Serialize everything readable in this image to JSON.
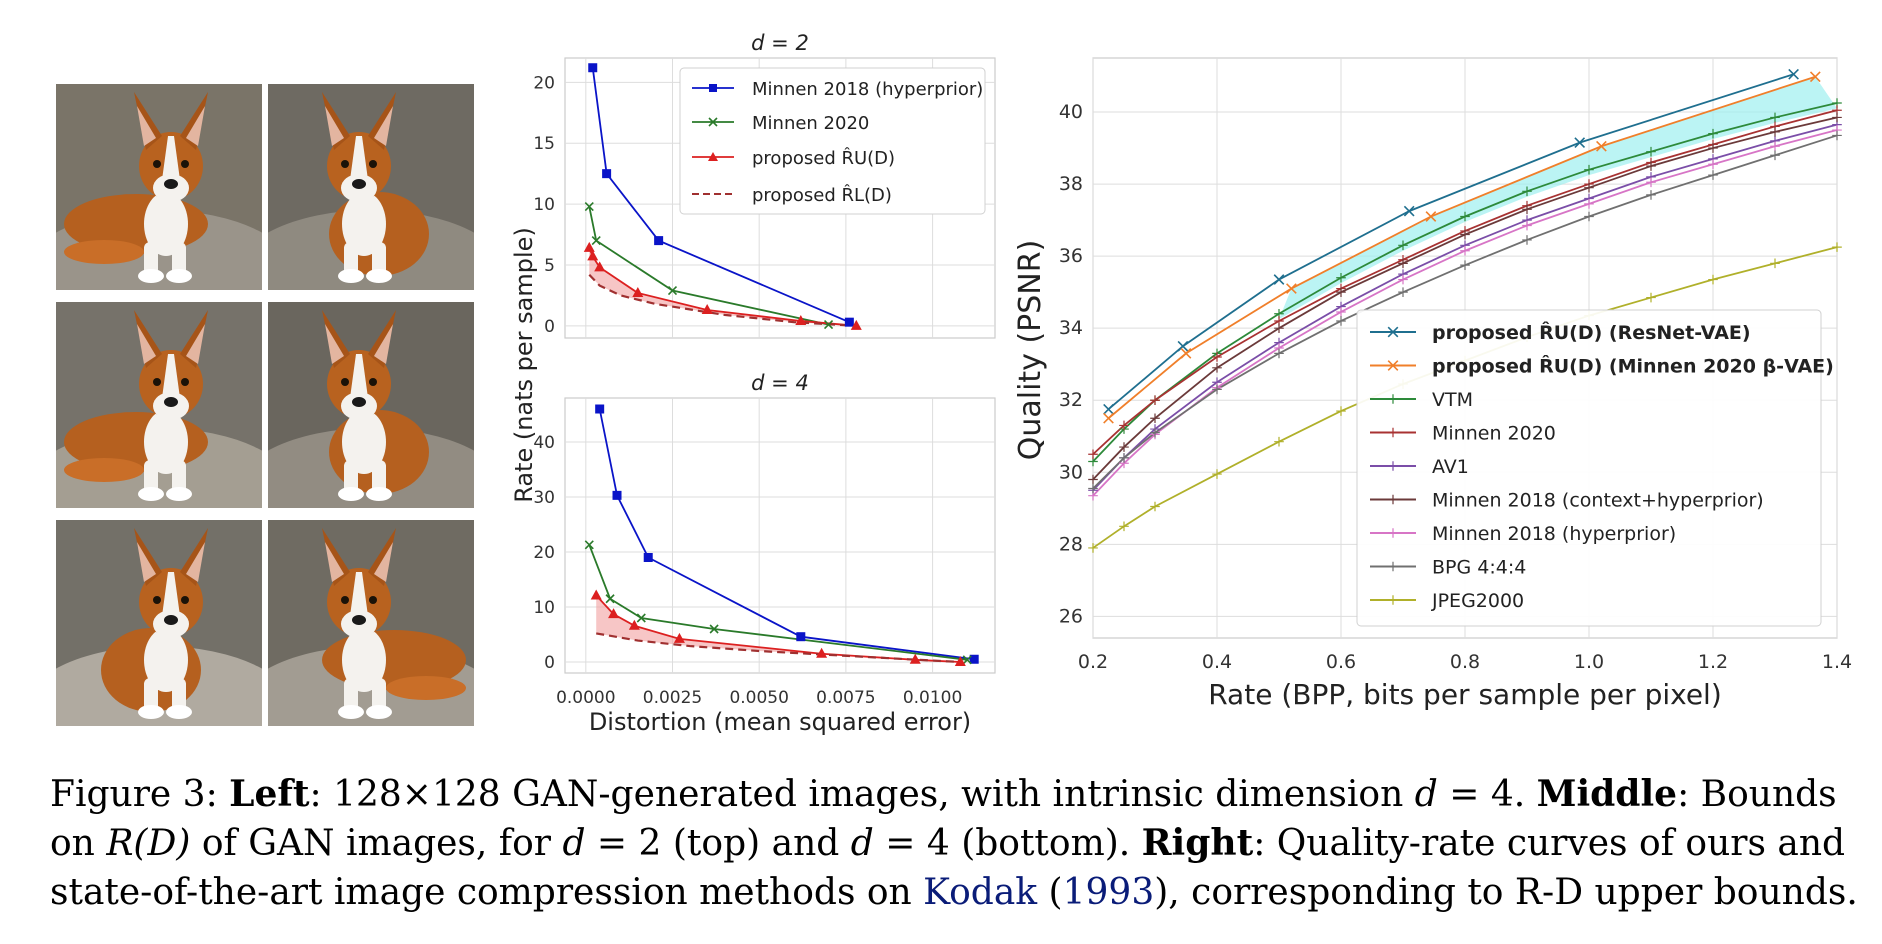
{
  "caption": {
    "figure_label": "Figure 3:",
    "left_head": "Left",
    "left_text_a": ": 128×128 GAN-generated images, with intrinsic dimension ",
    "d_sym": "d",
    "eq4": " = 4. ",
    "middle_head": "Middle",
    "middle_text_a": ": Bounds",
    "line2_a": "on ",
    "RD": "R(D)",
    "line2_b": " of GAN images, for ",
    "eq2_top": " = 2 (top) and ",
    "eq4_bottom": " = 4 (bottom). ",
    "right_head": "Right",
    "right_text_a": ": Quality-rate curves of ours and",
    "line3_a": "state-of-the-art image compression methods on ",
    "kodak": "Kodak",
    "line3_b": " (",
    "year": "1993",
    "line3_c": "), corresponding to R-D upper bounds."
  },
  "colors": {
    "blue": "#0a14c8",
    "green": "#2a7a2a",
    "red": "#dc2020",
    "darkred": "#a03030",
    "gray_bg_grid": "#d9d9d9",
    "teal": "#1f6f8f",
    "orange": "#f07f2a",
    "vtm": "#2d8a3a",
    "minnen2020": "#a83232",
    "av1": "#7b4ea8",
    "context": "#6b3a3a",
    "hyper": "#d775c6",
    "bpg": "#707070",
    "jpeg2000": "#b0b02a",
    "cyan_fill": "#9ef0f0"
  },
  "chart_data": [
    {
      "type": "line",
      "title": "d = 2",
      "ylabel": "Rate (nats per sample)",
      "xlim": [
        -0.0006,
        0.0118
      ],
      "ylim": [
        -1,
        22
      ],
      "yticks": [
        "0",
        "5",
        "10",
        "15",
        "20"
      ],
      "ytick_values": [
        0,
        5,
        10,
        15,
        20
      ],
      "grid": true,
      "legend_position": "top-right",
      "series": [
        {
          "name": "Minnen 2018 (hyperprior)",
          "color": "#0a14c8",
          "marker": "square",
          "x": [
            0.0002,
            0.0006,
            0.0021,
            0.0076
          ],
          "y": [
            21.2,
            12.5,
            7.0,
            0.3
          ]
        },
        {
          "name": "Minnen 2020",
          "color": "#2a7a2a",
          "marker": "x",
          "x": [
            0.0001,
            0.0003,
            0.0025,
            0.007
          ],
          "y": [
            9.8,
            7.0,
            2.9,
            0.1
          ]
        },
        {
          "name": "proposed R̂U(D)",
          "color": "#dc2020",
          "marker": "triangle",
          "x": [
            0.0001,
            0.0002,
            0.0004,
            0.0015,
            0.0035,
            0.0062,
            0.0078
          ],
          "y": [
            6.4,
            5.7,
            4.8,
            2.7,
            1.3,
            0.4,
            0.0
          ]
        },
        {
          "name": "proposed R̂L(D)",
          "color": "#a03030",
          "marker": "none",
          "dash": true,
          "x": [
            0.0001,
            0.0004,
            0.001,
            0.002,
            0.004,
            0.006,
            0.0078
          ],
          "y": [
            4.2,
            3.3,
            2.5,
            1.8,
            0.9,
            0.3,
            0.0
          ]
        }
      ]
    },
    {
      "type": "line",
      "title": "d = 4",
      "ylabel": "Rate (nats per sample)",
      "xlabel": "Distortion (mean squared error)",
      "xlim": [
        -0.0006,
        0.0118
      ],
      "ylim": [
        -2,
        48
      ],
      "xticks": [
        "0.0000",
        "0.0025",
        "0.0050",
        "0.0075",
        "0.0100"
      ],
      "xtick_values": [
        0.0,
        0.0025,
        0.005,
        0.0075,
        0.01
      ],
      "yticks": [
        "0",
        "10",
        "20",
        "30",
        "40"
      ],
      "ytick_values": [
        0,
        10,
        20,
        30,
        40
      ],
      "grid": true,
      "series": [
        {
          "name": "Minnen 2018 (hyperprior)",
          "color": "#0a14c8",
          "marker": "square",
          "x": [
            0.0004,
            0.0009,
            0.0018,
            0.0062,
            0.0112
          ],
          "y": [
            46,
            30.3,
            19,
            4.6,
            0.5
          ]
        },
        {
          "name": "Minnen 2020",
          "color": "#2a7a2a",
          "marker": "x",
          "x": [
            0.0001,
            0.0007,
            0.0016,
            0.0037,
            0.011
          ],
          "y": [
            21.3,
            11.5,
            8.0,
            6.0,
            0.4
          ]
        },
        {
          "name": "proposed R̂U(D)",
          "color": "#dc2020",
          "marker": "triangle",
          "x": [
            0.0003,
            0.0008,
            0.0014,
            0.0027,
            0.0068,
            0.0095,
            0.0108
          ],
          "y": [
            12.1,
            8.7,
            6.6,
            4.2,
            1.5,
            0.4,
            0.0
          ]
        },
        {
          "name": "proposed R̂L(D)",
          "color": "#a03030",
          "marker": "none",
          "dash": true,
          "x": [
            0.0003,
            0.0015,
            0.003,
            0.005,
            0.007,
            0.009,
            0.0108
          ],
          "y": [
            5.2,
            3.9,
            2.9,
            2.0,
            1.3,
            0.6,
            0.0
          ]
        }
      ]
    },
    {
      "type": "line",
      "xlabel": "Rate (BPP, bits per sample per pixel)",
      "ylabel": "Quality (PSNR)",
      "xlim": [
        0.2,
        1.4
      ],
      "ylim": [
        25.4,
        41.5
      ],
      "xticks": [
        "0.2",
        "0.4",
        "0.6",
        "0.8",
        "1.0",
        "1.2",
        "1.4"
      ],
      "xtick_values": [
        0.2,
        0.4,
        0.6,
        0.8,
        1.0,
        1.2,
        1.4
      ],
      "yticks": [
        "26",
        "28",
        "30",
        "32",
        "34",
        "36",
        "38",
        "40"
      ],
      "ytick_values": [
        26,
        28,
        30,
        32,
        34,
        36,
        38,
        40
      ],
      "grid": true,
      "legend_position": "lower-right",
      "series": [
        {
          "name": "proposed R̂U(D) (ResNet-VAE)",
          "color": "#1f6f8f",
          "marker": "x",
          "x": [
            0.225,
            0.345,
            0.5,
            0.71,
            0.985,
            1.33
          ],
          "y": [
            31.75,
            33.5,
            35.35,
            37.25,
            39.15,
            41.05
          ]
        },
        {
          "name": "proposed R̂U(D) (Minnen 2020 β-VAE)",
          "color": "#f07f2a",
          "marker": "x",
          "x": [
            0.225,
            0.35,
            0.52,
            0.745,
            1.02,
            1.365
          ],
          "y": [
            31.5,
            33.3,
            35.1,
            37.1,
            39.05,
            40.98
          ]
        },
        {
          "name": "VTM",
          "color": "#2d8a3a",
          "marker": "plus",
          "x": [
            0.2,
            0.25,
            0.3,
            0.4,
            0.5,
            0.6,
            0.7,
            0.8,
            0.9,
            1.0,
            1.1,
            1.2,
            1.3,
            1.4
          ],
          "y": [
            30.3,
            31.2,
            32.0,
            33.3,
            34.4,
            35.4,
            36.3,
            37.1,
            37.8,
            38.4,
            38.9,
            39.4,
            39.85,
            40.25
          ]
        },
        {
          "name": "Minnen 2020",
          "color": "#a83232",
          "marker": "plus",
          "x": [
            0.2,
            0.25,
            0.3,
            0.4,
            0.5,
            0.6,
            0.7,
            0.8,
            0.9,
            1.0,
            1.1,
            1.2,
            1.3,
            1.4
          ],
          "y": [
            30.5,
            31.3,
            32.0,
            33.2,
            34.2,
            35.1,
            35.9,
            36.7,
            37.4,
            38.0,
            38.6,
            39.1,
            39.6,
            40.05
          ]
        },
        {
          "name": "AV1",
          "color": "#7b4ea8",
          "marker": "plus",
          "x": [
            0.2,
            0.25,
            0.3,
            0.4,
            0.5,
            0.6,
            0.7,
            0.8,
            0.9,
            1.0,
            1.1,
            1.2,
            1.3,
            1.4
          ],
          "y": [
            29.5,
            30.4,
            31.2,
            32.5,
            33.6,
            34.6,
            35.5,
            36.3,
            37.0,
            37.6,
            38.2,
            38.7,
            39.2,
            39.65
          ]
        },
        {
          "name": "Minnen 2018 (context+hyperprior)",
          "color": "#6b3a3a",
          "marker": "plus",
          "x": [
            0.2,
            0.25,
            0.3,
            0.4,
            0.5,
            0.6,
            0.7,
            0.8,
            0.9,
            1.0,
            1.1,
            1.2,
            1.3,
            1.4
          ],
          "y": [
            29.8,
            30.7,
            31.5,
            32.9,
            34.0,
            35.0,
            35.8,
            36.6,
            37.3,
            37.9,
            38.5,
            39.0,
            39.45,
            39.85
          ]
        },
        {
          "name": "Minnen 2018 (hyperprior)",
          "color": "#d775c6",
          "marker": "plus",
          "x": [
            0.2,
            0.25,
            0.3,
            0.4,
            0.5,
            0.6,
            0.7,
            0.8,
            0.9,
            1.0,
            1.1,
            1.2,
            1.3,
            1.4
          ],
          "y": [
            29.35,
            30.25,
            31.05,
            32.35,
            33.45,
            34.45,
            35.35,
            36.15,
            36.85,
            37.45,
            38.05,
            38.55,
            39.05,
            39.5
          ]
        },
        {
          "name": "BPG 4:4:4",
          "color": "#707070",
          "marker": "plus",
          "x": [
            0.2,
            0.25,
            0.3,
            0.4,
            0.5,
            0.6,
            0.7,
            0.8,
            0.9,
            1.0,
            1.1,
            1.2,
            1.3,
            1.4
          ],
          "y": [
            29.55,
            30.4,
            31.1,
            32.3,
            33.3,
            34.2,
            35.0,
            35.75,
            36.45,
            37.1,
            37.7,
            38.25,
            38.8,
            39.35
          ]
        },
        {
          "name": "JPEG2000",
          "color": "#b0b02a",
          "marker": "plus",
          "x": [
            0.2,
            0.25,
            0.3,
            0.4,
            0.5,
            0.6,
            0.7,
            0.8,
            0.9,
            1.0,
            1.1,
            1.2,
            1.3,
            1.4
          ],
          "y": [
            27.9,
            28.5,
            29.05,
            29.95,
            30.85,
            31.7,
            32.45,
            33.1,
            33.75,
            34.35,
            34.85,
            35.35,
            35.8,
            36.25
          ]
        }
      ]
    }
  ]
}
